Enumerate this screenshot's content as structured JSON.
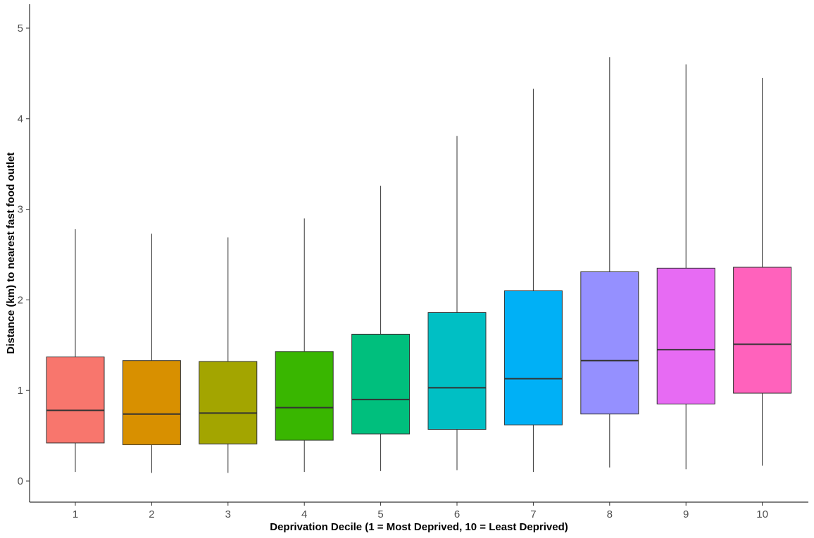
{
  "chart_data": {
    "type": "boxplot",
    "title": "",
    "xlabel": "Deprivation Decile (1 = Most Deprived, 10 = Least Deprived)",
    "ylabel": "Distance (km) to nearest fast food outlet",
    "ylim": [
      -0.25,
      5.25
    ],
    "yticks": [
      "0",
      "1",
      "2",
      "3",
      "4",
      "5"
    ],
    "grid": false,
    "legend": "none",
    "categories": [
      "1",
      "2",
      "3",
      "4",
      "5",
      "6",
      "7",
      "8",
      "9",
      "10"
    ],
    "boxes": [
      {
        "category": "1",
        "min": 0.1,
        "q1": 0.42,
        "median": 0.78,
        "q3": 1.37,
        "max": 2.78,
        "color": "#F8766D"
      },
      {
        "category": "2",
        "min": 0.09,
        "q1": 0.4,
        "median": 0.74,
        "q3": 1.33,
        "max": 2.73,
        "color": "#D89000"
      },
      {
        "category": "3",
        "min": 0.09,
        "q1": 0.41,
        "median": 0.75,
        "q3": 1.32,
        "max": 2.69,
        "color": "#A3A500"
      },
      {
        "category": "4",
        "min": 0.1,
        "q1": 0.45,
        "median": 0.81,
        "q3": 1.43,
        "max": 2.9,
        "color": "#39B600"
      },
      {
        "category": "5",
        "min": 0.11,
        "q1": 0.52,
        "median": 0.9,
        "q3": 1.62,
        "max": 3.26,
        "color": "#00BF7D"
      },
      {
        "category": "6",
        "min": 0.12,
        "q1": 0.57,
        "median": 1.03,
        "q3": 1.86,
        "max": 3.81,
        "color": "#00BFC4"
      },
      {
        "category": "7",
        "min": 0.1,
        "q1": 0.62,
        "median": 1.13,
        "q3": 2.1,
        "max": 4.33,
        "color": "#00B0F6"
      },
      {
        "category": "8",
        "min": 0.15,
        "q1": 0.74,
        "median": 1.33,
        "q3": 2.31,
        "max": 4.68,
        "color": "#9590FF"
      },
      {
        "category": "9",
        "min": 0.13,
        "q1": 0.85,
        "median": 1.45,
        "q3": 2.35,
        "max": 4.6,
        "color": "#E76BF3"
      },
      {
        "category": "10",
        "min": 0.17,
        "q1": 0.97,
        "median": 1.51,
        "q3": 2.36,
        "max": 4.45,
        "color": "#FF62BC"
      }
    ]
  }
}
